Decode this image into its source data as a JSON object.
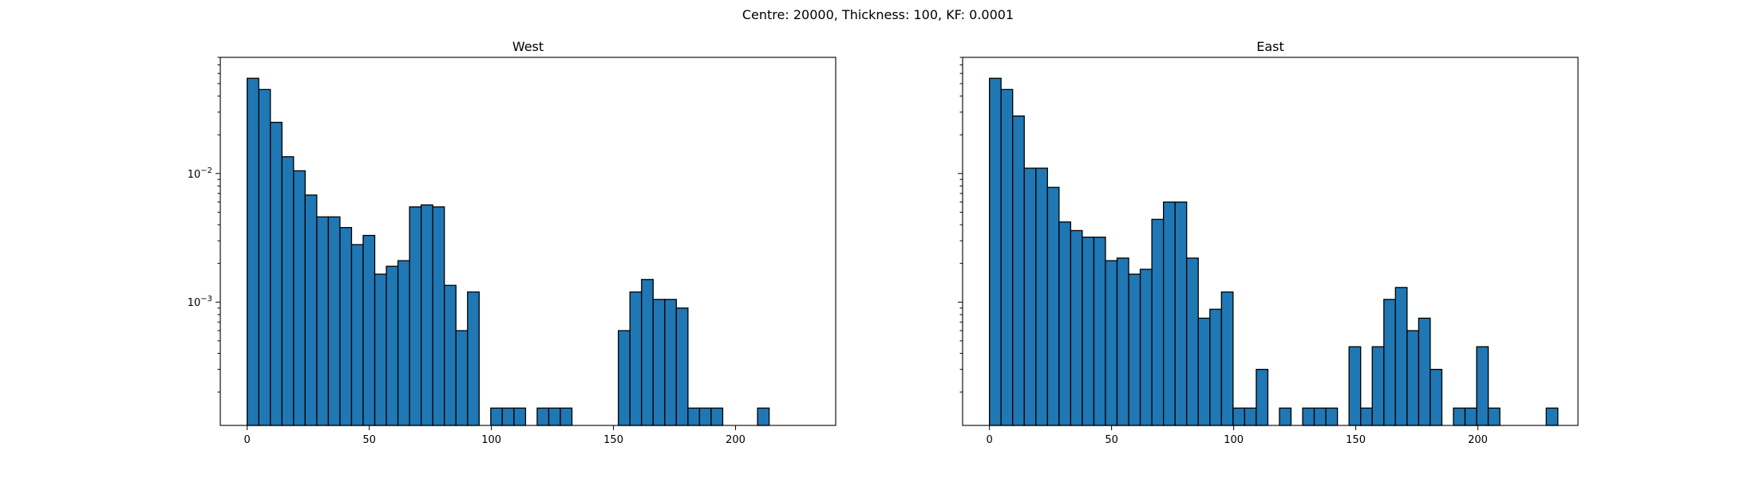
{
  "figure": {
    "suptitle": "Centre: 20000, Thickness: 100, KF: 0.0001"
  },
  "chart_data": [
    {
      "type": "bar",
      "title": "West",
      "xlabel": "",
      "ylabel": "",
      "yscale": "log",
      "xlim": [
        -11,
        241
      ],
      "ylim": [
        0.00011,
        0.08
      ],
      "bar_color": "#1f77b4",
      "edge_color": "#000000",
      "bin_width": 4.75,
      "x_ticks": [
        0,
        50,
        100,
        150,
        200
      ],
      "y_ticks": [
        {
          "value": 0.001,
          "label": "10^-3"
        },
        {
          "value": 0.01,
          "label": "10^-2"
        }
      ],
      "bins": [
        {
          "x": 0.0,
          "y": 0.055
        },
        {
          "x": 4.75,
          "y": 0.045
        },
        {
          "x": 9.5,
          "y": 0.025
        },
        {
          "x": 14.25,
          "y": 0.0135
        },
        {
          "x": 19.0,
          "y": 0.0105
        },
        {
          "x": 23.75,
          "y": 0.0068
        },
        {
          "x": 28.5,
          "y": 0.0046
        },
        {
          "x": 33.25,
          "y": 0.0046
        },
        {
          "x": 38.0,
          "y": 0.0038
        },
        {
          "x": 42.75,
          "y": 0.0028
        },
        {
          "x": 47.5,
          "y": 0.0033
        },
        {
          "x": 52.25,
          "y": 0.00165
        },
        {
          "x": 57.0,
          "y": 0.0019
        },
        {
          "x": 61.75,
          "y": 0.0021
        },
        {
          "x": 66.5,
          "y": 0.0055
        },
        {
          "x": 71.25,
          "y": 0.0057
        },
        {
          "x": 76.0,
          "y": 0.0055
        },
        {
          "x": 80.75,
          "y": 0.00135
        },
        {
          "x": 85.5,
          "y": 0.0006
        },
        {
          "x": 90.25,
          "y": 0.0012
        },
        {
          "x": 99.75,
          "y": 0.00015
        },
        {
          "x": 104.5,
          "y": 0.00015
        },
        {
          "x": 109.25,
          "y": 0.00015
        },
        {
          "x": 118.75,
          "y": 0.00015
        },
        {
          "x": 123.5,
          "y": 0.00015
        },
        {
          "x": 128.25,
          "y": 0.00015
        },
        {
          "x": 152.0,
          "y": 0.0006
        },
        {
          "x": 156.75,
          "y": 0.0012
        },
        {
          "x": 161.5,
          "y": 0.0015
        },
        {
          "x": 166.25,
          "y": 0.00105
        },
        {
          "x": 171.0,
          "y": 0.00105
        },
        {
          "x": 175.75,
          "y": 0.0009
        },
        {
          "x": 180.5,
          "y": 0.00015
        },
        {
          "x": 185.25,
          "y": 0.00015
        },
        {
          "x": 190.0,
          "y": 0.00015
        },
        {
          "x": 209.0,
          "y": 0.00015
        }
      ]
    },
    {
      "type": "bar",
      "title": "East",
      "xlabel": "",
      "ylabel": "",
      "yscale": "log",
      "xlim": [
        -11,
        241
      ],
      "ylim": [
        0.00011,
        0.08
      ],
      "bar_color": "#1f77b4",
      "edge_color": "#000000",
      "bin_width": 4.75,
      "x_ticks": [
        0,
        50,
        100,
        150,
        200
      ],
      "y_ticks": [],
      "bins": [
        {
          "x": 0.0,
          "y": 0.055
        },
        {
          "x": 4.75,
          "y": 0.045
        },
        {
          "x": 9.5,
          "y": 0.028
        },
        {
          "x": 14.25,
          "y": 0.011
        },
        {
          "x": 19.0,
          "y": 0.011
        },
        {
          "x": 23.75,
          "y": 0.0078
        },
        {
          "x": 28.5,
          "y": 0.0042
        },
        {
          "x": 33.25,
          "y": 0.0036
        },
        {
          "x": 38.0,
          "y": 0.0032
        },
        {
          "x": 42.75,
          "y": 0.0032
        },
        {
          "x": 47.5,
          "y": 0.0021
        },
        {
          "x": 52.25,
          "y": 0.0022
        },
        {
          "x": 57.0,
          "y": 0.00165
        },
        {
          "x": 61.75,
          "y": 0.0018
        },
        {
          "x": 66.5,
          "y": 0.0044
        },
        {
          "x": 71.25,
          "y": 0.006
        },
        {
          "x": 76.0,
          "y": 0.006
        },
        {
          "x": 80.75,
          "y": 0.0022
        },
        {
          "x": 85.5,
          "y": 0.00075
        },
        {
          "x": 90.25,
          "y": 0.00088
        },
        {
          "x": 95.0,
          "y": 0.0012
        },
        {
          "x": 99.75,
          "y": 0.00015
        },
        {
          "x": 104.5,
          "y": 0.00015
        },
        {
          "x": 109.25,
          "y": 0.0003
        },
        {
          "x": 118.75,
          "y": 0.00015
        },
        {
          "x": 128.25,
          "y": 0.00015
        },
        {
          "x": 133.0,
          "y": 0.00015
        },
        {
          "x": 137.75,
          "y": 0.00015
        },
        {
          "x": 147.25,
          "y": 0.00045
        },
        {
          "x": 152.0,
          "y": 0.00015
        },
        {
          "x": 156.75,
          "y": 0.00045
        },
        {
          "x": 161.5,
          "y": 0.00105
        },
        {
          "x": 166.25,
          "y": 0.0013
        },
        {
          "x": 171.0,
          "y": 0.0006
        },
        {
          "x": 175.75,
          "y": 0.00075
        },
        {
          "x": 180.5,
          "y": 0.0003
        },
        {
          "x": 190.0,
          "y": 0.00015
        },
        {
          "x": 194.75,
          "y": 0.00015
        },
        {
          "x": 199.5,
          "y": 0.00045
        },
        {
          "x": 204.25,
          "y": 0.00015
        },
        {
          "x": 228.0,
          "y": 0.00015
        }
      ]
    }
  ]
}
